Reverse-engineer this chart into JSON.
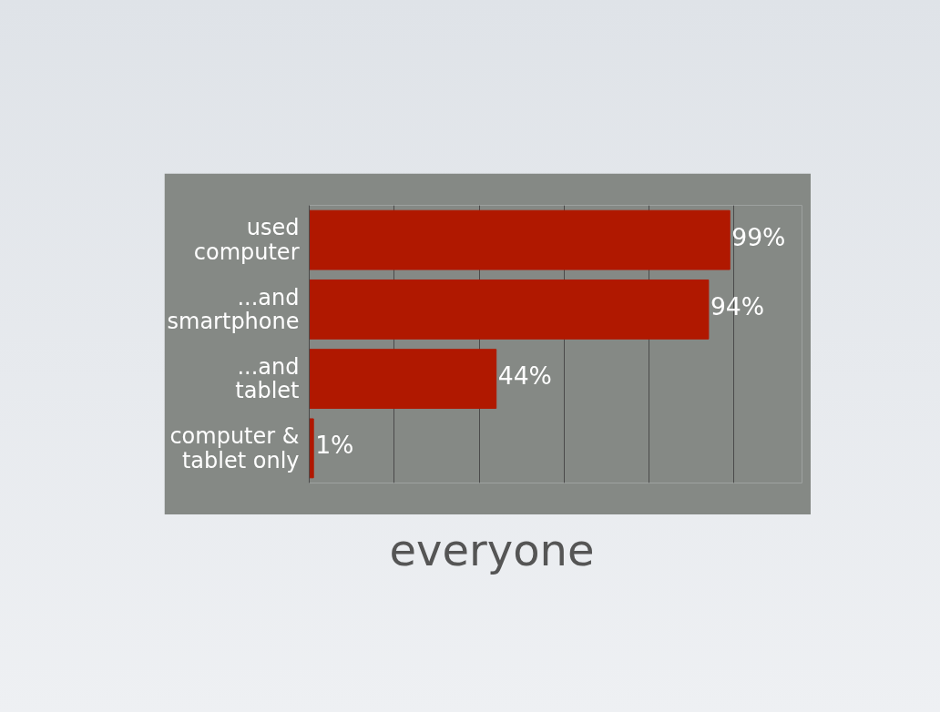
{
  "chart_data": {
    "type": "bar",
    "orientation": "horizontal",
    "title": "everyone",
    "categories": [
      "used\ncomputer",
      "...and\nsmartphone",
      "...and\ntablet",
      "computer &\ntablet only"
    ],
    "values": [
      99,
      94,
      44,
      1
    ],
    "value_labels": [
      "99%",
      "94%",
      "44%",
      "1%"
    ],
    "color": "#b01800",
    "xlim": [
      0,
      100
    ],
    "xticks": [
      {
        "value": 0,
        "label": null
      },
      {
        "value": 20,
        "label": null
      },
      {
        "value": 40,
        "label": null
      },
      {
        "value": 60,
        "label": null
      },
      {
        "value": 80,
        "label": null
      },
      {
        "value": 100,
        "label": null
      }
    ],
    "grid": "x",
    "tick_labels": "y"
  }
}
